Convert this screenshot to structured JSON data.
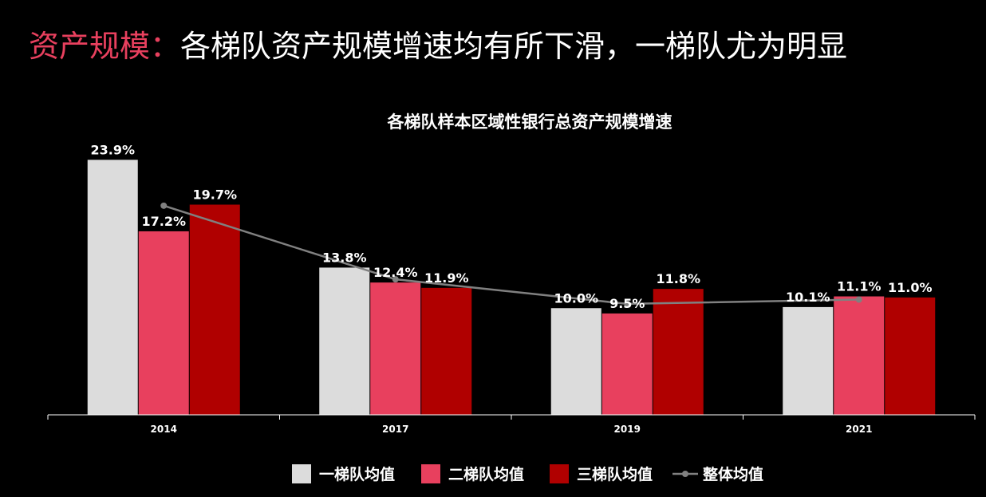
{
  "slide": {
    "title_accent": "资产规模：",
    "title_main": "各梯队资产规模增速均有所下滑，一梯队尤为明显"
  },
  "colors": {
    "background": "#000000",
    "accent_title": "#e8405e",
    "tier1": "#dcdcdc",
    "tier2": "#e8405e",
    "tier3": "#b00000",
    "overall": "#808080",
    "axis": "#ffffff"
  },
  "chart_data": {
    "type": "bar",
    "title": "各梯队样本区域性银行总资产规模增速",
    "categories": [
      "2014",
      "2017",
      "2019",
      "2021"
    ],
    "ylim": [
      0,
      0.24
    ],
    "grid": false,
    "legend_position": "bottom",
    "series": [
      {
        "name": "一梯队均值",
        "kind": "bar",
        "values": [
          0.239,
          0.138,
          0.1,
          0.101
        ],
        "labels": [
          "23.9%",
          "13.8%",
          "10.0%",
          "10.1%"
        ]
      },
      {
        "name": "二梯队均值",
        "kind": "bar",
        "values": [
          0.172,
          0.124,
          0.095,
          0.111
        ],
        "labels": [
          "17.2%",
          "12.4%",
          "9.5%",
          "11.1%"
        ]
      },
      {
        "name": "三梯队均值",
        "kind": "bar",
        "values": [
          0.197,
          0.119,
          0.118,
          0.11
        ],
        "labels": [
          "19.7%",
          "11.9%",
          "11.8%",
          "11.0%"
        ]
      },
      {
        "name": "整体均值",
        "kind": "line",
        "values": [
          0.196,
          0.127,
          0.104,
          0.108
        ]
      }
    ]
  }
}
